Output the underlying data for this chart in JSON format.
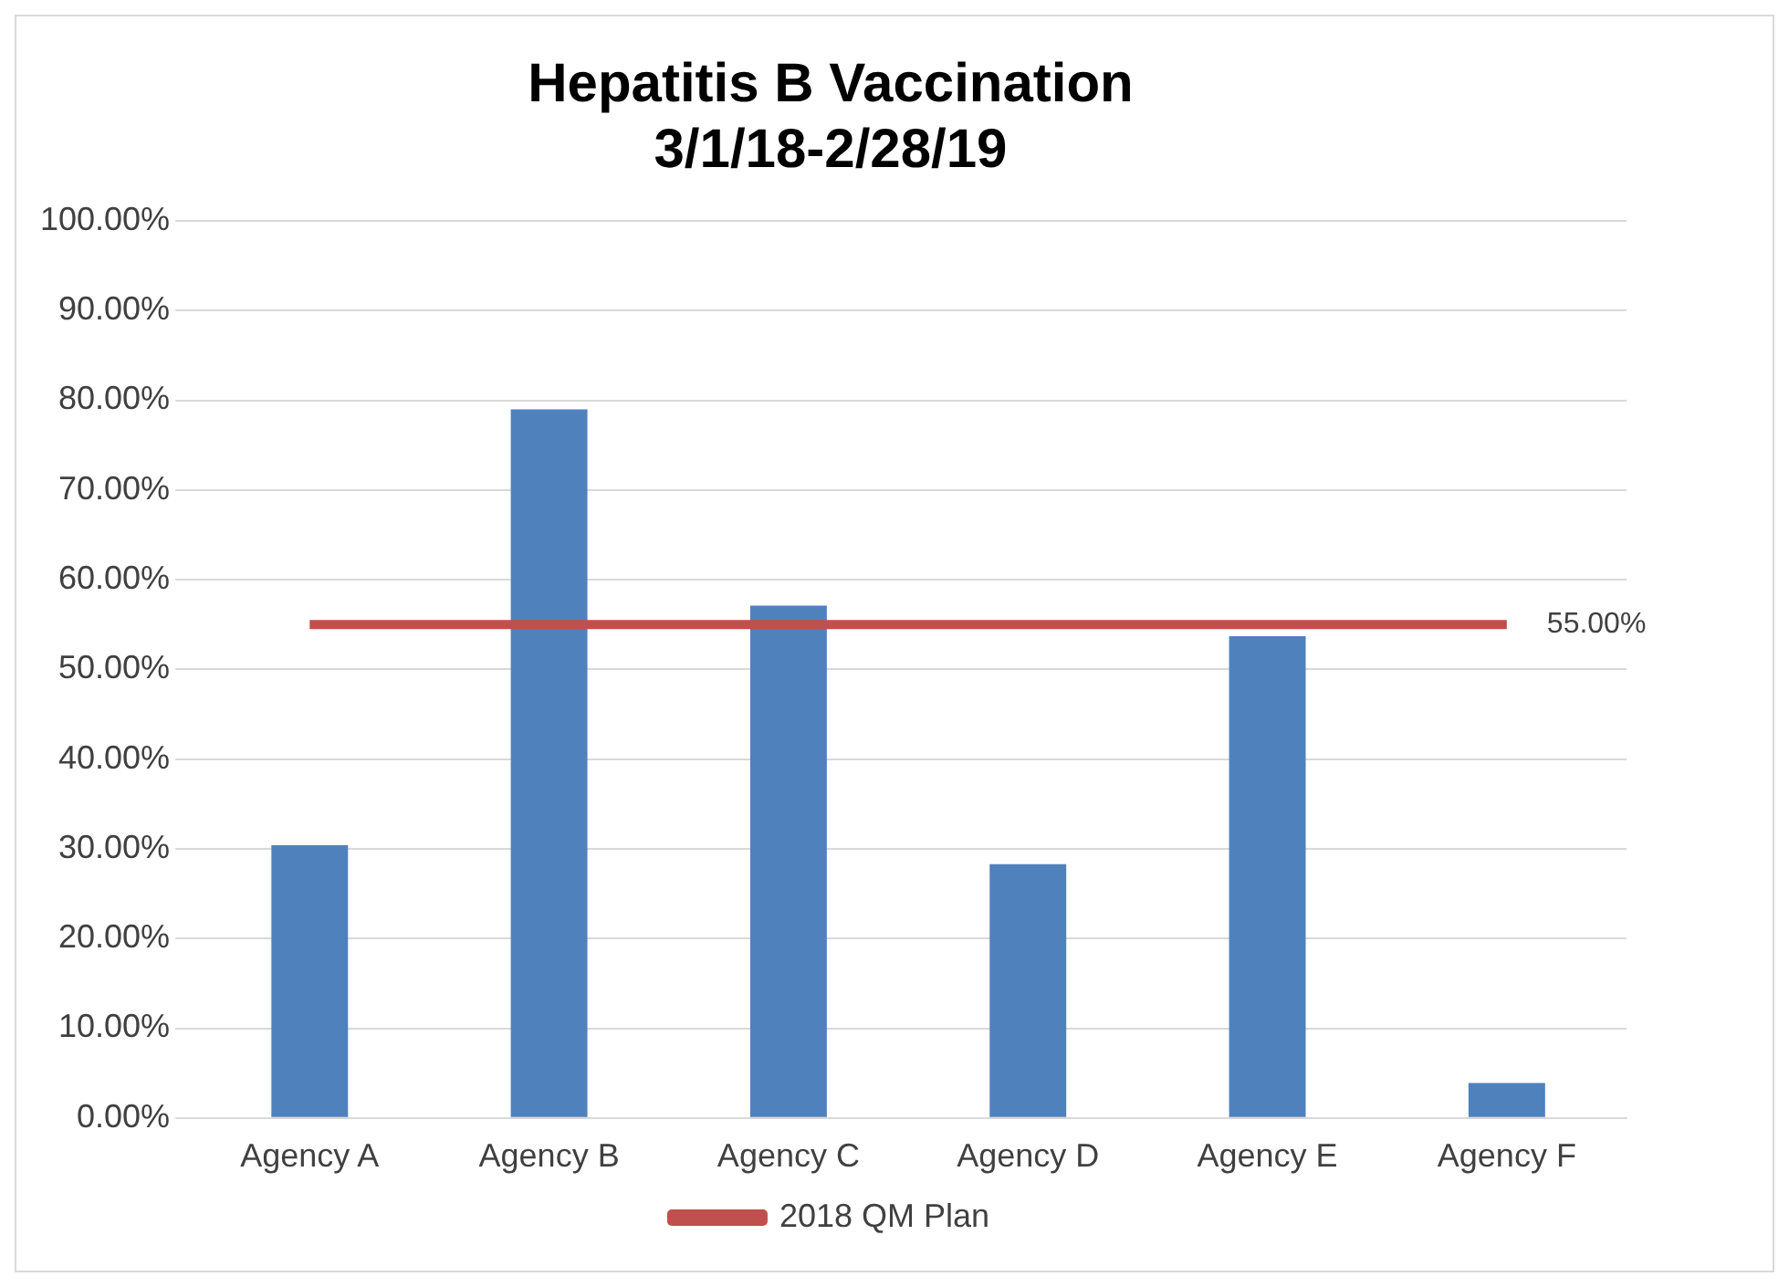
{
  "chart_data": {
    "type": "bar",
    "title": "Hepatitis B Vaccination\n3/1/18-2/28/19",
    "categories": [
      "Agency A",
      "Agency B",
      "Agency C",
      "Agency D",
      "Agency E",
      "Agency F"
    ],
    "series": [
      {
        "color": "#4f81bd",
        "values": [
          30.4,
          79,
          57.1,
          28.3,
          53.7,
          3.9
        ]
      },
      {
        "type": "line",
        "name": "2018 QM Plan",
        "color": "#c0504d",
        "marker": "none",
        "line_style": "solid",
        "values": [
          55,
          55,
          55,
          55,
          55,
          55
        ],
        "value_labels": [
          null,
          null,
          null,
          null,
          null,
          "55.00%"
        ]
      }
    ],
    "ylim": [
      0,
      100
    ],
    "yticks": [
      {
        "value": 0,
        "label": "0.00%"
      },
      {
        "value": 10,
        "label": "10.00%"
      },
      {
        "value": 20,
        "label": "20.00%"
      },
      {
        "value": 30,
        "label": "30.00%"
      },
      {
        "value": 40,
        "label": "40.00%"
      },
      {
        "value": 50,
        "label": "50.00%"
      },
      {
        "value": 60,
        "label": "60.00%"
      },
      {
        "value": 70,
        "label": "70.00%"
      },
      {
        "value": 80,
        "label": "80.00%"
      },
      {
        "value": 90,
        "label": "90.00%"
      },
      {
        "value": 100,
        "label": "100.00%"
      }
    ],
    "grid": "y",
    "legend": "bottom"
  }
}
